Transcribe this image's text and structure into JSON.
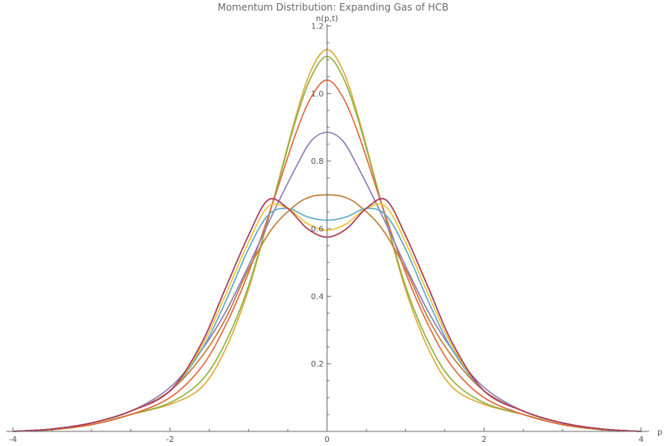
{
  "chart_data": {
    "type": "line",
    "title": "Momentum Distribution: Expanding Gas of HCB",
    "xlabel": "p",
    "ylabel": "n(p,t)",
    "xlim": [
      -4,
      4
    ],
    "ylim": [
      0,
      1.2
    ],
    "xticks": [
      -4,
      -2,
      0,
      2,
      4
    ],
    "xtick_labels": [
      "-4",
      "-2",
      "0",
      "2",
      "4"
    ],
    "yticks": [
      0.2,
      0.4,
      0.6,
      0.8,
      1.0,
      1.2
    ],
    "ytick_labels": [
      "0.2",
      "0.4",
      "0.6",
      "0.8",
      "1.0",
      "1.2"
    ],
    "grid": false,
    "series": [
      {
        "color": "#E0A93A",
        "dashed": false,
        "points": [
          [
            -4,
            0.0
          ],
          [
            -3.5,
            0.005
          ],
          [
            -3,
            0.02
          ],
          [
            -2.5,
            0.05
          ],
          [
            -2,
            0.08
          ],
          [
            -1.6,
            0.13
          ],
          [
            -1.3,
            0.24
          ],
          [
            -1,
            0.42
          ],
          [
            -0.7,
            0.67
          ],
          [
            -0.4,
            0.93
          ],
          [
            -0.2,
            1.07
          ],
          [
            0,
            1.13
          ],
          [
            0.2,
            1.07
          ],
          [
            0.4,
            0.93
          ],
          [
            0.7,
            0.67
          ],
          [
            1,
            0.42
          ],
          [
            1.3,
            0.24
          ],
          [
            1.6,
            0.13
          ],
          [
            2,
            0.08
          ],
          [
            2.5,
            0.05
          ],
          [
            3,
            0.02
          ],
          [
            3.5,
            0.005
          ],
          [
            4,
            0.0
          ]
        ]
      },
      {
        "color": "#8FB03E",
        "dashed": false,
        "points": [
          [
            -4,
            0.0
          ],
          [
            -3.5,
            0.005
          ],
          [
            -3,
            0.02
          ],
          [
            -2.5,
            0.05
          ],
          [
            -2,
            0.085
          ],
          [
            -1.6,
            0.15
          ],
          [
            -1.3,
            0.26
          ],
          [
            -1,
            0.43
          ],
          [
            -0.7,
            0.67
          ],
          [
            -0.4,
            0.92
          ],
          [
            -0.2,
            1.05
          ],
          [
            0,
            1.11
          ],
          [
            0.2,
            1.05
          ],
          [
            0.4,
            0.92
          ],
          [
            0.7,
            0.67
          ],
          [
            1,
            0.43
          ],
          [
            1.3,
            0.26
          ],
          [
            1.6,
            0.15
          ],
          [
            2,
            0.085
          ],
          [
            2.5,
            0.05
          ],
          [
            3,
            0.02
          ],
          [
            3.5,
            0.005
          ],
          [
            4,
            0.0
          ]
        ]
      },
      {
        "color": "#E2673C",
        "dashed": false,
        "points": [
          [
            -4,
            0.0
          ],
          [
            -3.5,
            0.006
          ],
          [
            -3,
            0.02
          ],
          [
            -2.5,
            0.05
          ],
          [
            -2,
            0.1
          ],
          [
            -1.6,
            0.19
          ],
          [
            -1.3,
            0.31
          ],
          [
            -1,
            0.47
          ],
          [
            -0.7,
            0.67
          ],
          [
            -0.4,
            0.88
          ],
          [
            -0.2,
            0.99
          ],
          [
            0,
            1.04
          ],
          [
            0.2,
            0.99
          ],
          [
            0.4,
            0.88
          ],
          [
            0.7,
            0.67
          ],
          [
            1,
            0.47
          ],
          [
            1.3,
            0.31
          ],
          [
            1.6,
            0.19
          ],
          [
            2,
            0.1
          ],
          [
            2.5,
            0.05
          ],
          [
            3,
            0.02
          ],
          [
            3.5,
            0.006
          ],
          [
            4,
            0.0
          ]
        ]
      },
      {
        "color": "#8C7BB8",
        "dashed": false,
        "points": [
          [
            -4,
            0.0
          ],
          [
            -3.5,
            0.007
          ],
          [
            -3,
            0.025
          ],
          [
            -2.5,
            0.06
          ],
          [
            -2,
            0.13
          ],
          [
            -1.6,
            0.24
          ],
          [
            -1.3,
            0.35
          ],
          [
            -1,
            0.49
          ],
          [
            -0.7,
            0.64
          ],
          [
            -0.4,
            0.78
          ],
          [
            -0.2,
            0.86
          ],
          [
            0,
            0.885
          ],
          [
            0.2,
            0.86
          ],
          [
            0.4,
            0.78
          ],
          [
            0.7,
            0.64
          ],
          [
            1,
            0.49
          ],
          [
            1.3,
            0.35
          ],
          [
            1.6,
            0.24
          ],
          [
            2,
            0.13
          ],
          [
            2.5,
            0.06
          ],
          [
            3,
            0.025
          ],
          [
            3.5,
            0.007
          ],
          [
            4,
            0.0
          ]
        ]
      },
      {
        "color": "#C27A32",
        "dashed": false,
        "points": [
          [
            -4,
            0.0
          ],
          [
            -3.5,
            0.007
          ],
          [
            -3,
            0.025
          ],
          [
            -2.5,
            0.06
          ],
          [
            -2,
            0.12
          ],
          [
            -1.6,
            0.22
          ],
          [
            -1.3,
            0.33
          ],
          [
            -1,
            0.48
          ],
          [
            -0.7,
            0.6
          ],
          [
            -0.4,
            0.67
          ],
          [
            -0.2,
            0.695
          ],
          [
            0,
            0.7
          ],
          [
            0.2,
            0.695
          ],
          [
            0.4,
            0.67
          ],
          [
            0.7,
            0.6
          ],
          [
            1,
            0.48
          ],
          [
            1.3,
            0.33
          ],
          [
            1.6,
            0.22
          ],
          [
            2,
            0.12
          ],
          [
            2.5,
            0.06
          ],
          [
            3,
            0.025
          ],
          [
            3.5,
            0.007
          ],
          [
            4,
            0.0
          ]
        ]
      },
      {
        "color": "#5AA8C9",
        "dashed": false,
        "points": [
          [
            -4,
            0.0
          ],
          [
            -3.5,
            0.007
          ],
          [
            -3,
            0.025
          ],
          [
            -2.5,
            0.06
          ],
          [
            -2,
            0.12
          ],
          [
            -1.6,
            0.24
          ],
          [
            -1.3,
            0.38
          ],
          [
            -1,
            0.54
          ],
          [
            -0.75,
            0.64
          ],
          [
            -0.5,
            0.66
          ],
          [
            -0.25,
            0.635
          ],
          [
            0,
            0.625
          ],
          [
            0.25,
            0.635
          ],
          [
            0.5,
            0.66
          ],
          [
            0.75,
            0.64
          ],
          [
            1,
            0.54
          ],
          [
            1.3,
            0.38
          ],
          [
            1.6,
            0.24
          ],
          [
            2,
            0.12
          ],
          [
            2.5,
            0.06
          ],
          [
            3,
            0.025
          ],
          [
            3.5,
            0.007
          ],
          [
            4,
            0.0
          ]
        ]
      },
      {
        "color": "#F2C230",
        "dashed": false,
        "points": [
          [
            -4,
            0.0
          ],
          [
            -3.5,
            0.007
          ],
          [
            -3,
            0.025
          ],
          [
            -2.5,
            0.06
          ],
          [
            -2,
            0.12
          ],
          [
            -1.6,
            0.25
          ],
          [
            -1.3,
            0.4
          ],
          [
            -1,
            0.56
          ],
          [
            -0.75,
            0.665
          ],
          [
            -0.5,
            0.66
          ],
          [
            -0.25,
            0.615
          ],
          [
            0,
            0.595
          ],
          [
            0.25,
            0.615
          ],
          [
            0.5,
            0.66
          ],
          [
            0.75,
            0.665
          ],
          [
            1,
            0.56
          ],
          [
            1.3,
            0.4
          ],
          [
            1.6,
            0.25
          ],
          [
            2,
            0.12
          ],
          [
            2.5,
            0.06
          ],
          [
            3,
            0.025
          ],
          [
            3.5,
            0.007
          ],
          [
            4,
            0.0
          ]
        ]
      },
      {
        "color": "#7A3A8A",
        "dashed": false,
        "points": [
          [
            -4,
            0.0
          ],
          [
            -3.5,
            0.007
          ],
          [
            -3,
            0.025
          ],
          [
            -2.5,
            0.06
          ],
          [
            -2,
            0.12
          ],
          [
            -1.6,
            0.26
          ],
          [
            -1.3,
            0.42
          ],
          [
            -1,
            0.58
          ],
          [
            -0.75,
            0.685
          ],
          [
            -0.5,
            0.66
          ],
          [
            -0.25,
            0.6
          ],
          [
            0,
            0.575
          ],
          [
            0.25,
            0.6
          ],
          [
            0.5,
            0.66
          ],
          [
            0.75,
            0.685
          ],
          [
            1,
            0.58
          ],
          [
            1.3,
            0.42
          ],
          [
            1.6,
            0.26
          ],
          [
            2,
            0.12
          ],
          [
            2.5,
            0.06
          ],
          [
            3,
            0.025
          ],
          [
            3.5,
            0.007
          ],
          [
            4,
            0.0
          ]
        ]
      },
      {
        "color": "#E23B2E",
        "dashed": true,
        "points": [
          [
            -4,
            0.0
          ],
          [
            -3.5,
            0.007
          ],
          [
            -3,
            0.025
          ],
          [
            -2.5,
            0.06
          ],
          [
            -2,
            0.12
          ],
          [
            -1.6,
            0.26
          ],
          [
            -1.3,
            0.42
          ],
          [
            -1,
            0.58
          ],
          [
            -0.75,
            0.685
          ],
          [
            -0.5,
            0.66
          ],
          [
            -0.25,
            0.6
          ],
          [
            0,
            0.575
          ],
          [
            0.25,
            0.6
          ],
          [
            0.5,
            0.66
          ],
          [
            0.75,
            0.685
          ],
          [
            1,
            0.58
          ],
          [
            1.3,
            0.42
          ],
          [
            1.6,
            0.26
          ],
          [
            2,
            0.12
          ],
          [
            2.5,
            0.06
          ],
          [
            3,
            0.025
          ],
          [
            3.5,
            0.007
          ],
          [
            4,
            0.0
          ]
        ]
      }
    ]
  }
}
